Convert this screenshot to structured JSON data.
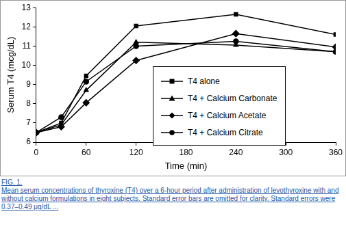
{
  "chart_data": {
    "type": "line",
    "x_label": "Time (min)",
    "y_label": "Serum T4 (mcg/dL)",
    "x": [
      0,
      30,
      60,
      120,
      240,
      360
    ],
    "series": [
      {
        "name": "T4 alone",
        "color": "#000000",
        "marker": "square",
        "line_style": "solid",
        "values": [
          6.5,
          7.0,
          9.45,
          12.05,
          12.65,
          11.6
        ]
      },
      {
        "name": "T4 + Calcium Carbonate",
        "color": "#000000",
        "marker": "triangle",
        "line_style": "solid",
        "values": [
          6.5,
          6.9,
          8.7,
          11.2,
          11.05,
          10.7
        ]
      },
      {
        "name": "T4 + Calcium Acetate",
        "color": "#000000",
        "marker": "diamond",
        "line_style": "solid",
        "values": [
          6.5,
          6.8,
          8.05,
          10.25,
          11.65,
          10.95
        ]
      },
      {
        "name": "T4 + Calcium Citrate",
        "color": "#000000",
        "marker": "circle",
        "line_style": "solid",
        "values": [
          6.5,
          7.3,
          9.15,
          11.0,
          11.25,
          10.7
        ]
      }
    ],
    "xlim": [
      0,
      360
    ],
    "xticks": [
      0,
      60,
      120,
      180,
      240,
      300,
      360
    ],
    "ylim": [
      6,
      13
    ],
    "yticks": [
      6,
      7,
      8,
      9,
      10,
      11,
      12,
      13
    ],
    "grid": false,
    "legend": "right",
    "annotations": [
      "FIG. 1.",
      "Mean serum concentrations of thyroxine (T4) over a 6-hour period after administration of levothyroxine with and without calcium formulations in eight subjects. Standard error bars are omitted for clarity. Standard errors were 0.37–0.49 μg/dL ..."
    ]
  }
}
